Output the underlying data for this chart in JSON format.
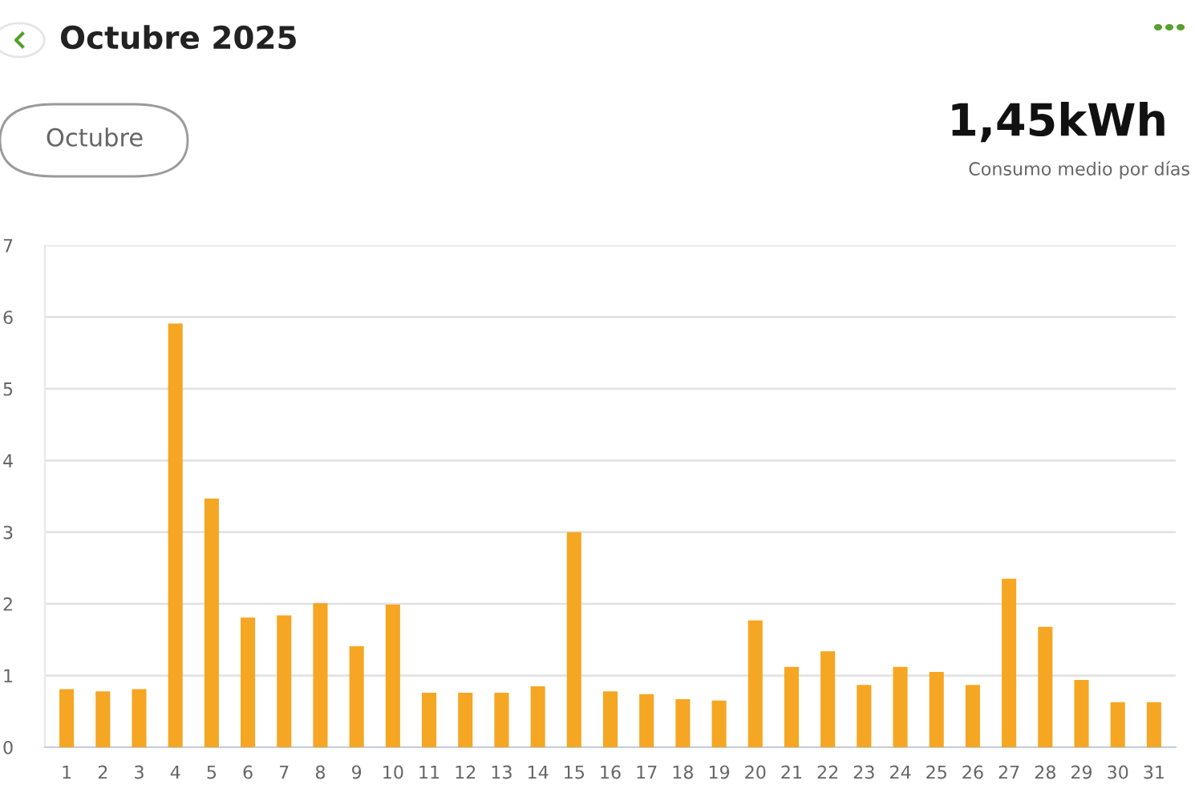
{
  "chart_data": {
    "type": "bar",
    "title": "Octubre 2025",
    "annotations": [
      "Octubre",
      "1,45kWh",
      "Consumo medio por días"
    ],
    "categories": [
      "1",
      "2",
      "3",
      "4",
      "5",
      "6",
      "7",
      "8",
      "9",
      "10",
      "11",
      "12",
      "13",
      "14",
      "15",
      "16",
      "17",
      "18",
      "19",
      "20",
      "21",
      "22",
      "23",
      "24",
      "25",
      "26",
      "27",
      "28",
      "29",
      "30",
      "31"
    ],
    "values": [
      0.81,
      0.78,
      0.81,
      5.91,
      3.47,
      1.81,
      1.84,
      2.01,
      1.41,
      1.99,
      0.76,
      0.76,
      0.76,
      0.85,
      3.0,
      0.78,
      0.74,
      0.67,
      0.65,
      1.77,
      1.12,
      1.34,
      0.87,
      1.12,
      1.05,
      0.87,
      2.35,
      1.68,
      0.94,
      0.63,
      0.63
    ],
    "color": "#f5a623",
    "ylim": [
      0,
      7
    ],
    "yticks": [
      0,
      1,
      2,
      3,
      4,
      5,
      6,
      7
    ],
    "grid": "y"
  }
}
